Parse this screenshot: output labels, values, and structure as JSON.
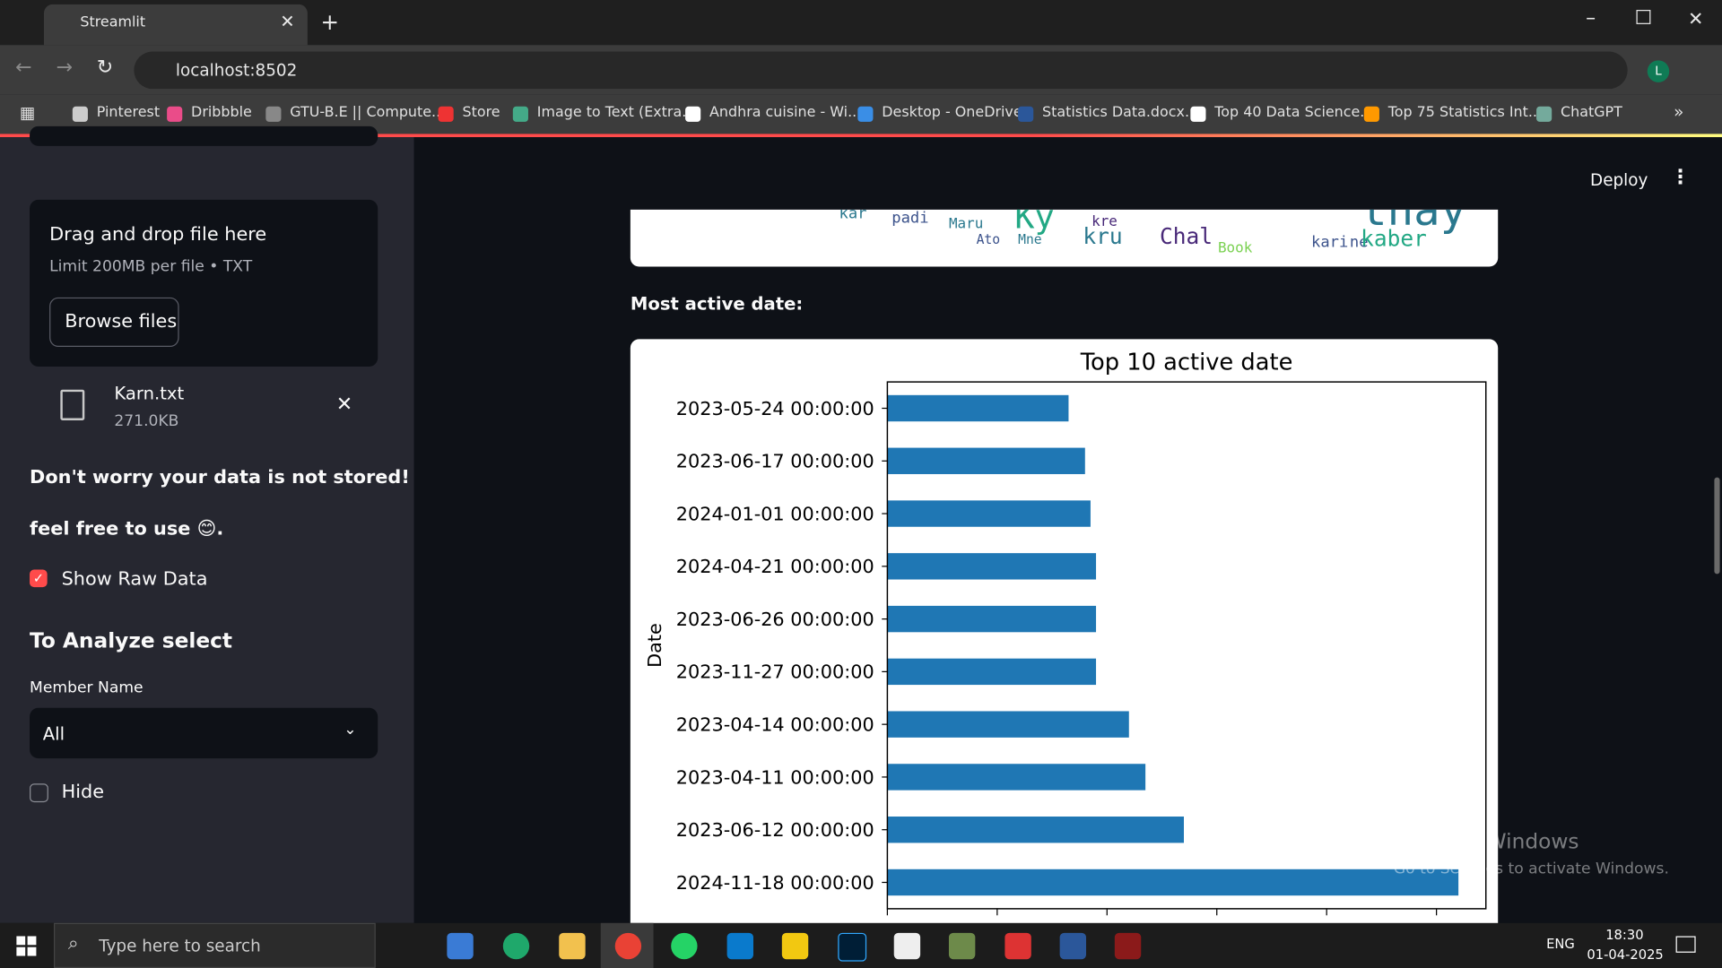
{
  "browser": {
    "tab_title": "Streamlit",
    "url": "localhost:8502",
    "bookmarks": [
      "Pinterest",
      "Dribbble",
      "GTU-B.E || Compute...",
      "Store",
      "Image to Text (Extra...",
      "Andhra cuisine - Wi...",
      "Desktop - OneDrive",
      "Statistics Data.docx...",
      "Top 40 Data Science...",
      "Top 75 Statistics Int...",
      "ChatGPT"
    ]
  },
  "sidebar": {
    "upload_title": "Drag and drop file here",
    "upload_limit": "Limit 200MB per file • TXT",
    "browse_button": "Browse files",
    "file_name": "Karn.txt",
    "file_size": "271.0KB",
    "notice_1": "Don't worry your data is not stored!",
    "notice_2": "feel free to use 😊.",
    "checkbox_1": "Show Raw Data",
    "analyze_heading": "To Analyze select",
    "member_label": "Member Name",
    "member_value": "All",
    "checkbox_2": "Hide"
  },
  "main": {
    "deploy": "Deploy",
    "section_label": "Most active date:",
    "wordcloud_words": [
      "kar",
      "padi",
      "Maru",
      "Ato",
      "Mne",
      "kre",
      "kru",
      "Chal",
      "Book",
      "kari",
      "ne",
      "kaber",
      "thay",
      "Ky"
    ]
  },
  "chart_data": {
    "type": "barh",
    "title": "Top 10 active date",
    "ylabel": "Date",
    "color": "#1f77b4",
    "categories": [
      "2023-05-24 00:00:00",
      "2023-06-17 00:00:00",
      "2024-01-01 00:00:00",
      "2024-04-21 00:00:00",
      "2023-06-26 00:00:00",
      "2023-11-27 00:00:00",
      "2023-04-14 00:00:00",
      "2023-04-11 00:00:00",
      "2023-06-12 00:00:00",
      "2024-11-18 00:00:00"
    ],
    "values": [
      33,
      36,
      37,
      38,
      38,
      38,
      44,
      47,
      54,
      104
    ],
    "xlim": [
      0,
      109
    ],
    "xticks": [
      0,
      20,
      40,
      60,
      80,
      100
    ]
  },
  "watermark": {
    "title": "Activate Windows",
    "subtitle": "Go to Settings to activate Windows."
  },
  "taskbar": {
    "search": "Type here to search",
    "language": "ENG",
    "time": "18:30",
    "date": "01-04-2025"
  }
}
